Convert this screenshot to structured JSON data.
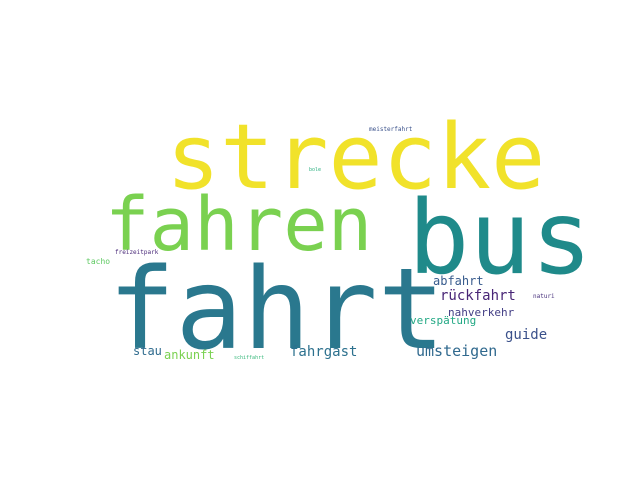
{
  "colors": {
    "background": "#ffffff",
    "yellow": "#f1e22a",
    "green": "#7ad150",
    "teal": "#1f8a8a",
    "blueteal": "#2a788e",
    "purple": "#472e7c",
    "indigo": "#3d4b89"
  },
  "words": [
    {
      "id": "strecke",
      "text": "strecke",
      "color": "#f1e22a"
    },
    {
      "id": "fahren",
      "text": "fahren",
      "color": "#7ad150"
    },
    {
      "id": "bus",
      "text": "bus",
      "color": "#1f8a8a"
    },
    {
      "id": "fahrt",
      "text": "fahrt",
      "color": "#2a788e"
    },
    {
      "id": "abfahrt",
      "text": "abfahrt",
      "color": "#375b8d"
    },
    {
      "id": "ruckfahrt",
      "text": "rückfahrt",
      "color": "#482576"
    },
    {
      "id": "naturi",
      "text": "naturi",
      "color": "#47307c"
    },
    {
      "id": "nahverkehr",
      "text": "nahverkehr",
      "color": "#423d84"
    },
    {
      "id": "verspatung",
      "text": "verspätung",
      "color": "#22a884"
    },
    {
      "id": "guide",
      "text": "guide",
      "color": "#3b518b"
    },
    {
      "id": "umsteigen",
      "text": "umsteigen",
      "color": "#30698e"
    },
    {
      "id": "fahrgast",
      "text": "fahrgast",
      "color": "#2d718e"
    },
    {
      "id": "stau",
      "text": "stau",
      "color": "#2f6b8e"
    },
    {
      "id": "ankunft",
      "text": "ankunft",
      "color": "#7ad150"
    },
    {
      "id": "meisterfahrt",
      "text": "meisterfahrt",
      "color": "#3b528b"
    },
    {
      "id": "bole",
      "text": "bole",
      "color": "#29af7f"
    },
    {
      "id": "tacho",
      "text": "tacho",
      "color": "#5ec962"
    },
    {
      "id": "freizeitpark",
      "text": "freizeitpark",
      "color": "#482878"
    },
    {
      "id": "schiffahrt",
      "text": "schiffahrt",
      "color": "#35b779"
    }
  ]
}
